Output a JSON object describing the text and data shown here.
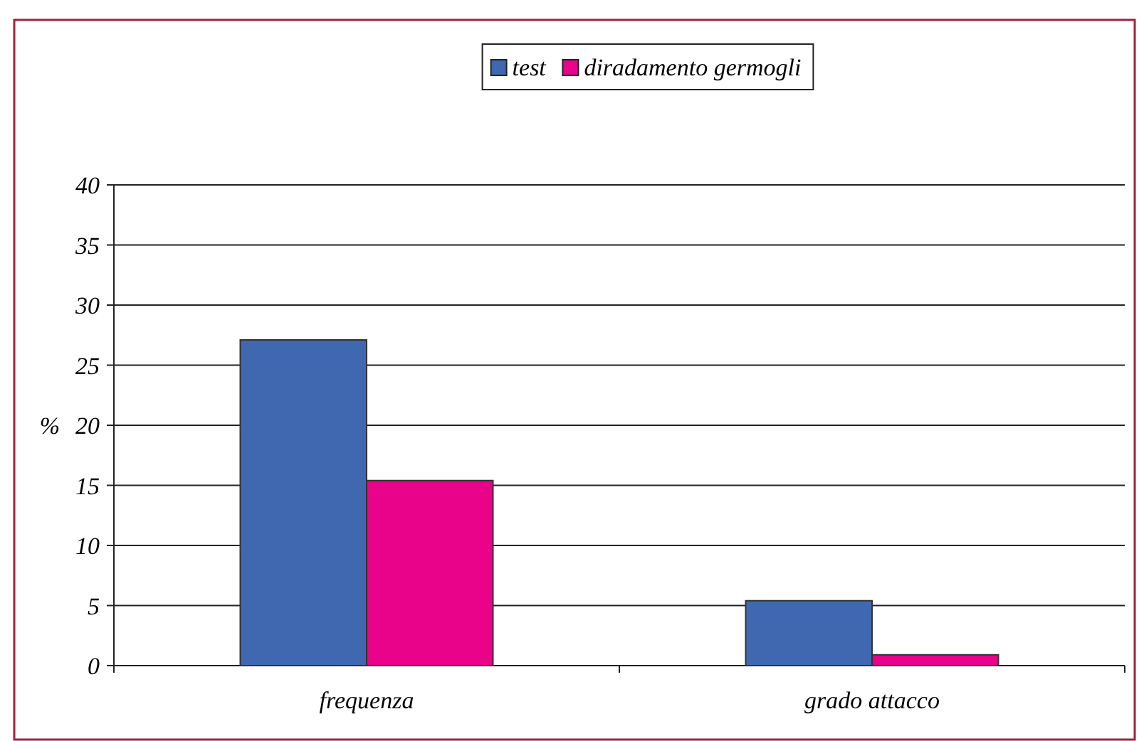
{
  "chart_data": {
    "type": "bar",
    "ylabel": "%",
    "categories": [
      "frequenza",
      "grado attacco"
    ],
    "series": [
      {
        "name": "test",
        "color": "#3f68b0",
        "values": [
          27.1,
          5.4
        ]
      },
      {
        "name": "diradamento germogli",
        "color": "#e8038a",
        "values": [
          15.4,
          0.9
        ]
      }
    ],
    "ylim": [
      0,
      40
    ],
    "yticks": [
      0,
      5,
      10,
      15,
      20,
      25,
      30,
      35,
      40
    ],
    "grid": "y",
    "legend": "top"
  }
}
